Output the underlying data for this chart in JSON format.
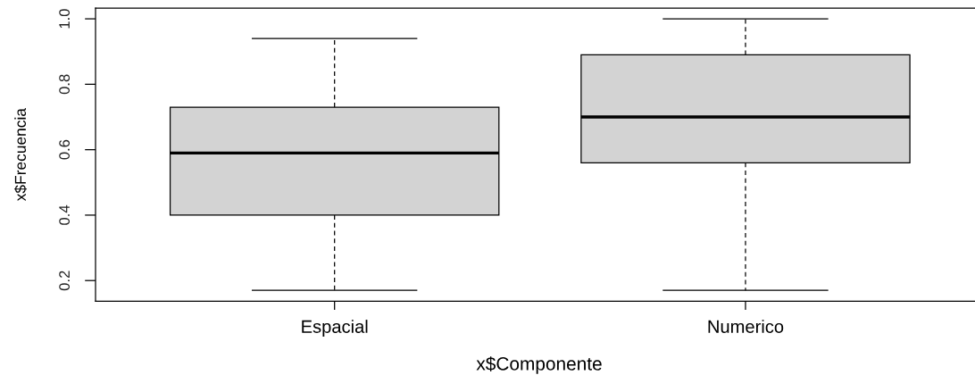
{
  "chart_data": {
    "type": "box",
    "categories": [
      "Espacial",
      "Numerico"
    ],
    "series": [
      {
        "color": "#d3d3d3",
        "boxes": [
          {
            "low": 0.17,
            "q1": 0.4,
            "median": 0.59,
            "q3": 0.73,
            "high": 0.94
          },
          {
            "low": 0.17,
            "q1": 0.56,
            "median": 0.7,
            "q3": 0.89,
            "high": 1.0
          }
        ]
      }
    ],
    "xlabel": "x$Componente",
    "ylabel": "x$Frecuencia",
    "ylim": [
      0.137,
      1.033
    ],
    "yticks": [
      0.2,
      0.4,
      0.6,
      0.8,
      {
        "value": 1.0,
        "label": "1.0"
      }
    ]
  }
}
